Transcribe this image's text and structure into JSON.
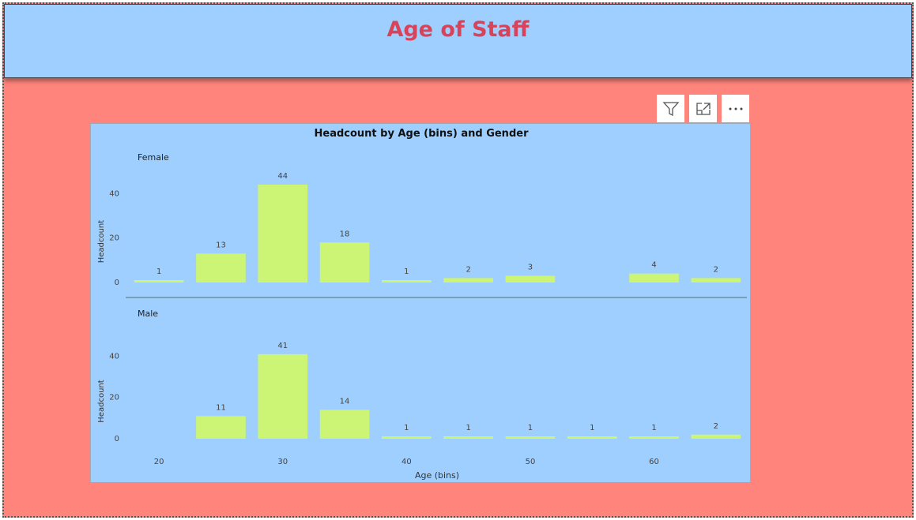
{
  "header": {
    "title": "Age of Staff"
  },
  "toolbar": {
    "icons": [
      "filter-icon",
      "focus-mode-icon",
      "more-options-icon"
    ]
  },
  "colors": {
    "canvas": "#ff847c",
    "header": "#9fcfff",
    "title": "#d9435a",
    "bar": "#ccf475",
    "plot": "#9fcfff"
  },
  "chart_data": {
    "type": "bar",
    "title": "Headcount by Age (bins) and Gender",
    "xlabel": "Age (bins)",
    "ylabel": "Headcount",
    "x_ticks": [
      "20",
      "30",
      "40",
      "50",
      "60"
    ],
    "y_ticks": [
      "0",
      "20",
      "40"
    ],
    "ylim": [
      0,
      44
    ],
    "categories": [
      "20",
      "25",
      "30",
      "35",
      "40",
      "45",
      "50",
      "55",
      "60",
      "65"
    ],
    "panels": [
      {
        "name": "Female",
        "values": [
          1,
          13,
          44,
          18,
          1,
          2,
          3,
          null,
          4,
          2
        ]
      },
      {
        "name": "Male",
        "values": [
          null,
          11,
          41,
          14,
          1,
          1,
          1,
          1,
          1,
          2
        ]
      }
    ]
  }
}
